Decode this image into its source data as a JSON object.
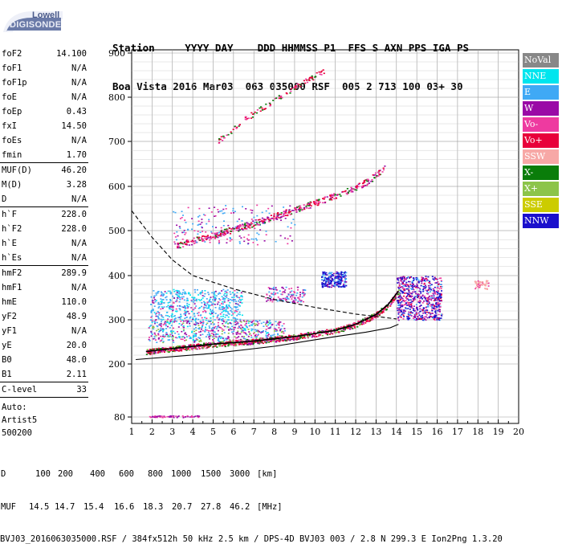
{
  "logo": {
    "line1": "Lowell",
    "line2": "DIGISONDE"
  },
  "header": {
    "row1": "Station     YYYY DAY    DDD HHMMSS P1  FFS S AXN PPS IGA PS",
    "row2": "Boa Vista 2016 Mar03  063 035000 RSF  005 2 713 100 03+ 30"
  },
  "params": {
    "group1": [
      {
        "k": "foF2",
        "v": "14.100"
      },
      {
        "k": "foF1",
        "v": "N/A"
      },
      {
        "k": "foF1p",
        "v": "N/A"
      },
      {
        "k": "foE",
        "v": "N/A"
      },
      {
        "k": "foEp",
        "v": "0.43"
      },
      {
        "k": "fxI",
        "v": "14.50"
      },
      {
        "k": "foEs",
        "v": "N/A"
      },
      {
        "k": "fmin",
        "v": "1.70"
      }
    ],
    "group2": [
      {
        "k": "MUF(D)",
        "v": "46.20"
      },
      {
        "k": "M(D)",
        "v": "3.28"
      },
      {
        "k": "D",
        "v": "N/A"
      }
    ],
    "group3": [
      {
        "k": "h`F",
        "v": "228.0"
      },
      {
        "k": "h`F2",
        "v": "228.0"
      },
      {
        "k": "h`E",
        "v": "N/A"
      },
      {
        "k": "h`Es",
        "v": "N/A"
      }
    ],
    "group4": [
      {
        "k": "hmF2",
        "v": "289.9"
      },
      {
        "k": "hmF1",
        "v": "N/A"
      },
      {
        "k": "hmE",
        "v": "110.0"
      },
      {
        "k": "yF2",
        "v": "48.9"
      },
      {
        "k": "yF1",
        "v": "N/A"
      },
      {
        "k": "yE",
        "v": "20.0"
      },
      {
        "k": "B0",
        "v": "48.0"
      },
      {
        "k": "B1",
        "v": "2.11"
      }
    ],
    "clevel": {
      "k": "C-level",
      "v": "33"
    },
    "auto": [
      "Auto:",
      "Artist5",
      "500200"
    ]
  },
  "legend": [
    {
      "label": "NoVal",
      "color": "#888888"
    },
    {
      "label": "NNE",
      "color": "#00e5ee"
    },
    {
      "label": "E",
      "color": "#3fa9f5"
    },
    {
      "label": "W",
      "color": "#9a0aa6"
    },
    {
      "label": "Vo-",
      "color": "#ee3aa0"
    },
    {
      "label": "Vo+",
      "color": "#e8003a"
    },
    {
      "label": "SSW",
      "color": "#f7a8a6"
    },
    {
      "label": "X-",
      "color": "#0a7d0a"
    },
    {
      "label": "X+",
      "color": "#8cc44a"
    },
    {
      "label": "SSE",
      "color": "#cccc00"
    },
    {
      "label": "NNW",
      "color": "#1a10cc"
    }
  ],
  "chart_data": {
    "type": "scatter",
    "x_ticks": [
      "1",
      "2",
      "3",
      "4",
      "5",
      "6",
      "7",
      "8",
      "9",
      "10",
      "11",
      "12",
      "13",
      "14",
      "15",
      "16",
      "17",
      "18",
      "19",
      "20"
    ],
    "y_ticks": [
      "80",
      "200",
      "300",
      "400",
      "500",
      "600",
      "700",
      "800",
      "900"
    ],
    "xlim": [
      1,
      20
    ],
    "ylim_note": "nonlinear height axis (km)",
    "y_axis": [
      [
        80,
        80
      ],
      [
        200,
        200
      ],
      [
        300,
        300
      ],
      [
        400,
        400
      ],
      [
        500,
        500
      ],
      [
        600,
        600
      ],
      [
        700,
        700
      ],
      [
        800,
        800
      ],
      [
        900,
        900
      ]
    ],
    "trace_ordinary": [
      [
        1.7,
        228
      ],
      [
        3,
        235
      ],
      [
        5,
        245
      ],
      [
        7,
        252
      ],
      [
        9,
        262
      ],
      [
        11,
        276
      ],
      [
        12,
        290
      ],
      [
        13,
        312
      ],
      [
        13.6,
        335
      ],
      [
        14.1,
        365
      ]
    ],
    "trace_2hop": [
      [
        3.2,
        468
      ],
      [
        5,
        490
      ],
      [
        7,
        518
      ],
      [
        9,
        548
      ],
      [
        11,
        580
      ],
      [
        12.5,
        610
      ],
      [
        13.4,
        640
      ]
    ],
    "trace_3hop": [
      [
        5.2,
        700
      ],
      [
        6.5,
        750
      ],
      [
        8,
        795
      ],
      [
        9.2,
        830
      ],
      [
        10.5,
        862
      ]
    ],
    "profile_solid": [
      [
        1.2,
        210
      ],
      [
        5,
        224
      ],
      [
        8,
        240
      ],
      [
        11,
        262
      ],
      [
        12.5,
        272
      ],
      [
        13.7,
        282
      ],
      [
        14.1,
        289.9
      ]
    ],
    "muf_dashed": [
      [
        1,
        545
      ],
      [
        2,
        485
      ],
      [
        3,
        435
      ],
      [
        4,
        400
      ],
      [
        6,
        370
      ],
      [
        8,
        346
      ],
      [
        10,
        328
      ],
      [
        12,
        313
      ],
      [
        14,
        302
      ]
    ]
  },
  "footer": {
    "d_label": "D",
    "d_vals": [
      "100",
      "200",
      "400",
      "600",
      "800",
      "1000",
      "1500",
      "3000",
      "[km]"
    ],
    "muf_label": "MUF",
    "muf_vals": [
      "14.5",
      "14.7",
      "15.4",
      "16.6",
      "18.3",
      "20.7",
      "27.8",
      "46.2",
      "[MHz]"
    ],
    "line3": "BVJ03_2016063035000.RSF / 384fx512h 50 kHz 2.5 km / DPS-4D BVJ03 003 / 2.8 N 299.3 E Ion2Png 1.3.20"
  }
}
